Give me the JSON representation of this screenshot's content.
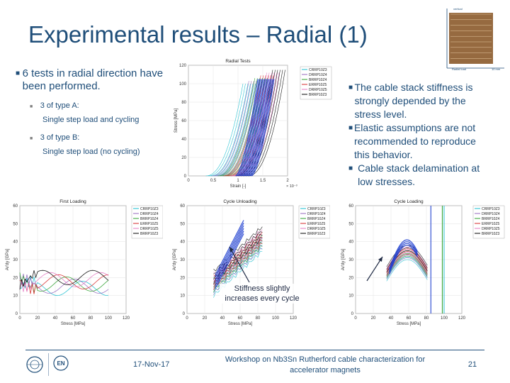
{
  "slide": {
    "title": "Experimental results – Radial (1)",
    "left_bullet": "6 tests in radial direction have been performed.",
    "sub_a": "3 of type A:",
    "sub_a_detail": "Single step load and cycling",
    "sub_b": "3 of type B:",
    "sub_b_detail": "Single step load (no cycling)",
    "right_bullets": [
      "The cable stack stiffness is strongly depended by the stress level.",
      "Elastic assumptions are not recommended to reproduce this behavior.",
      "Cable stack delamination at low stresses."
    ],
    "annotation": "Stiffness slightly increases every cycle",
    "footer": {
      "date": "17-Nov-17",
      "workshop": "Workshop on Nb3Sn Rutherford cable characterization for accelerator magnets",
      "page": "21"
    },
    "thumb": {
      "top_label": "vertical",
      "bottom_label_left": "Radial load",
      "bottom_label_right": "10 mm"
    }
  },
  "legend_labels": [
    "CRRP10Z3",
    "DRRP10Z4",
    "BRRP10Z4",
    "ERRP10Z5",
    "DRRP10Z5",
    "BRRP10Z3"
  ],
  "series_colors": [
    "#17becf",
    "#9467bd",
    "#2ca02c",
    "#d62728",
    "#e377c2",
    "#000000"
  ],
  "chart_data": [
    {
      "type": "line",
      "title": "Radial Tests",
      "xlabel": "Strain [-]",
      "ylabel": "Stress [MPa]",
      "x_multiplier": "× 10⁻³",
      "xlim": [
        0,
        2
      ],
      "ylim": [
        0,
        120
      ],
      "xticks": [
        "0",
        "0.5",
        "1",
        "1.5",
        "2"
      ],
      "yticks": [
        "0",
        "20",
        "40",
        "60",
        "80",
        "100",
        "120"
      ]
    },
    {
      "type": "line",
      "title": "First Loading",
      "xlabel": "Stress [MPa]",
      "ylabel": "Ar'dy [GPa]",
      "xlim": [
        0,
        120
      ],
      "ylim": [
        0,
        60
      ],
      "xticks": [
        "0",
        "20",
        "40",
        "60",
        "80",
        "100",
        "120"
      ],
      "yticks": [
        "0",
        "10",
        "20",
        "30",
        "40",
        "50",
        "60"
      ]
    },
    {
      "type": "line",
      "title": "Cycle Unloading",
      "xlabel": "Stress [MPa]",
      "ylabel": "Ar'dy [GPa]",
      "xlim": [
        0,
        120
      ],
      "ylim": [
        0,
        60
      ],
      "xticks": [
        "0",
        "20",
        "40",
        "60",
        "80",
        "100",
        "120"
      ],
      "yticks": [
        "0",
        "10",
        "20",
        "30",
        "40",
        "50",
        "60"
      ]
    },
    {
      "type": "line",
      "title": "Cycle Loading",
      "xlabel": "Stress [MPa]",
      "ylabel": "Ar'dy [GPa]",
      "xlim": [
        0,
        120
      ],
      "ylim": [
        0,
        60
      ],
      "xticks": [
        "0",
        "20",
        "40",
        "60",
        "80",
        "100",
        "120"
      ],
      "yticks": [
        "0",
        "10",
        "20",
        "30",
        "40",
        "50",
        "60"
      ]
    }
  ]
}
